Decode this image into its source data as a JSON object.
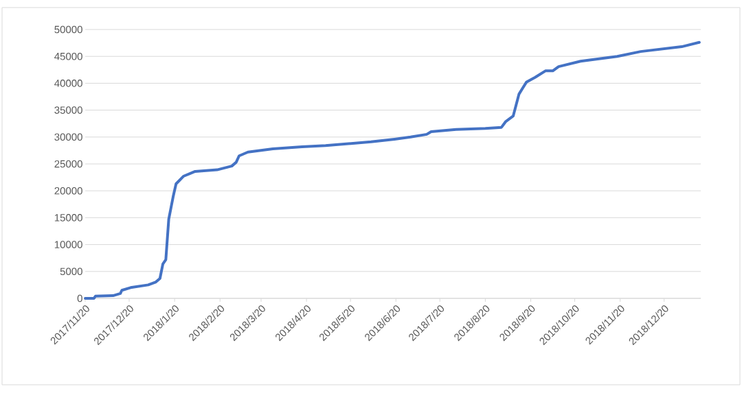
{
  "chart_data": {
    "type": "line",
    "color": "#4472c4",
    "grid": "y",
    "line_style": "solid",
    "marker": "none",
    "xlim": [
      "2017-11-20",
      "2019-01-14"
    ],
    "ylim": [
      0,
      50000
    ],
    "yticks": [
      0,
      5000,
      10000,
      15000,
      20000,
      25000,
      30000,
      35000,
      40000,
      45000,
      50000
    ],
    "xticks": [
      {
        "value": "2017-11-20",
        "label": "2017/11/20"
      },
      {
        "value": "2017-12-20",
        "label": "2017/12/20"
      },
      {
        "value": "2018-01-20",
        "label": "2018/1/20"
      },
      {
        "value": "2018-02-20",
        "label": "2018/2/20"
      },
      {
        "value": "2018-03-20",
        "label": "2018/3/20"
      },
      {
        "value": "2018-04-20",
        "label": "2018/4/20"
      },
      {
        "value": "2018-05-20",
        "label": "2018/5/20"
      },
      {
        "value": "2018-06-20",
        "label": "2018/6/20"
      },
      {
        "value": "2018-07-20",
        "label": "2018/7/20"
      },
      {
        "value": "2018-08-20",
        "label": "2018/8/20"
      },
      {
        "value": "2018-09-20",
        "label": "2018/9/20"
      },
      {
        "value": "2018-10-20",
        "label": "2018/10/20"
      },
      {
        "value": "2018-11-20",
        "label": "2018/11/20"
      },
      {
        "value": "2018-12-20",
        "label": "2018/12/20"
      }
    ],
    "x": [
      "2017-11-20",
      "2017-11-26",
      "2017-11-27",
      "2017-12-09",
      "2017-12-14",
      "2017-12-15",
      "2017-12-21",
      "2018-01-02",
      "2018-01-07",
      "2018-01-10",
      "2018-01-12",
      "2018-01-14",
      "2018-01-16",
      "2018-01-19",
      "2018-01-21",
      "2018-01-26",
      "2018-02-03",
      "2018-02-18",
      "2018-02-28",
      "2018-03-03",
      "2018-03-05",
      "2018-03-11",
      "2018-03-28",
      "2018-04-17",
      "2018-05-03",
      "2018-06-03",
      "2018-06-19",
      "2018-06-30",
      "2018-07-11",
      "2018-07-14",
      "2018-07-31",
      "2018-08-20",
      "2018-08-31",
      "2018-09-03",
      "2018-09-08",
      "2018-09-12",
      "2018-09-17",
      "2018-09-23",
      "2018-09-30",
      "2018-10-05",
      "2018-10-09",
      "2018-10-24",
      "2018-11-18",
      "2018-12-04",
      "2019-01-01",
      "2019-01-13"
    ],
    "values": [
      0,
      0,
      400,
      500,
      900,
      1500,
      2000,
      2500,
      3000,
      3700,
      6400,
      7200,
      14700,
      18900,
      21300,
      22700,
      23600,
      23900,
      24600,
      25300,
      26500,
      27200,
      27800,
      28200,
      28400,
      29100,
      29600,
      30000,
      30500,
      31000,
      31400,
      31600,
      31800,
      32900,
      33900,
      38000,
      40200,
      41100,
      42300,
      42300,
      43100,
      44100,
      45000,
      45900,
      46800,
      47600
    ]
  }
}
